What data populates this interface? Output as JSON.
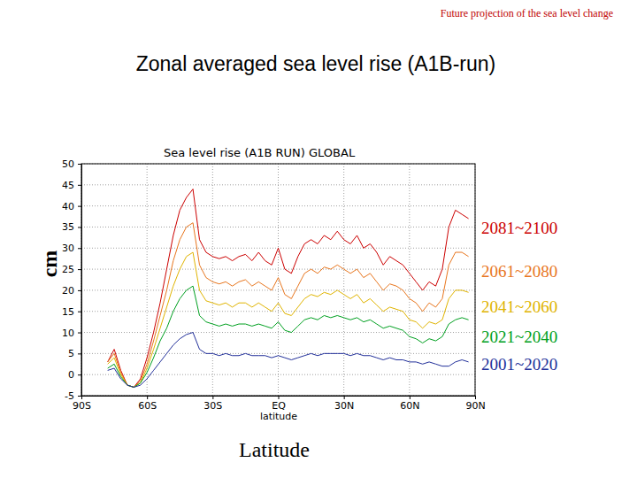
{
  "chart_data": {
    "type": "line",
    "header": "Future projection of the sea level change",
    "title": "Zonal averaged sea level rise (A1B-run)",
    "plot_title": "Sea level rise (A1B RUN) GLOBAL",
    "xlabel_inner": "latitude",
    "xlabel": "Latitude",
    "ylabel": "cm",
    "grid": true,
    "legend": "right",
    "xlim": [
      -90,
      90
    ],
    "xticks": [
      {
        "value": -90,
        "label": "90S"
      },
      {
        "value": -60,
        "label": "60S"
      },
      {
        "value": -30,
        "label": "30S"
      },
      {
        "value": 0,
        "label": "EQ"
      },
      {
        "value": 30,
        "label": "30N"
      },
      {
        "value": 60,
        "label": "60N"
      },
      {
        "value": 90,
        "label": "90N"
      }
    ],
    "ylim": [
      -5,
      50
    ],
    "yticks": [
      -5,
      0,
      5,
      10,
      15,
      20,
      25,
      30,
      35,
      40,
      45,
      50
    ],
    "x": [
      -78,
      -75,
      -72,
      -69,
      -66,
      -63,
      -60,
      -57,
      -54,
      -51,
      -48,
      -45,
      -42,
      -39,
      -36,
      -33,
      -30,
      -27,
      -24,
      -21,
      -18,
      -15,
      -12,
      -9,
      -6,
      -3,
      0,
      3,
      6,
      9,
      12,
      15,
      18,
      21,
      24,
      27,
      30,
      33,
      36,
      39,
      42,
      45,
      48,
      51,
      54,
      57,
      60,
      63,
      66,
      69,
      72,
      75,
      78,
      81,
      84,
      87
    ],
    "series": [
      {
        "name": "2081~2100",
        "color": "#cc0000",
        "values": [
          3,
          6,
          1,
          -2.5,
          -3,
          -1,
          4,
          10,
          17,
          25,
          33,
          39,
          42,
          44,
          32,
          29,
          28,
          27.5,
          28,
          27,
          28,
          28.5,
          27,
          29,
          27,
          26,
          30,
          25,
          24,
          28,
          31,
          32,
          31,
          33,
          32,
          34,
          32,
          31,
          33,
          30,
          31,
          29,
          26,
          28,
          27,
          26,
          24,
          22,
          20,
          22,
          21,
          25,
          35,
          39,
          38,
          37
        ]
      },
      {
        "name": "2061~2080",
        "color": "#e8761e",
        "values": [
          3,
          5,
          0.5,
          -2.5,
          -3,
          -1.5,
          2.5,
          8,
          14,
          20,
          27,
          32,
          35,
          36,
          26,
          23,
          22,
          21.5,
          22,
          21,
          22,
          22.5,
          21,
          22,
          21,
          20,
          23,
          19,
          18,
          21,
          24,
          25,
          24,
          25.5,
          25,
          26,
          25,
          24,
          25,
          23,
          24,
          22,
          20,
          21.5,
          21,
          20,
          18,
          17,
          15,
          17,
          16,
          18,
          26,
          29,
          29,
          28
        ]
      },
      {
        "name": "2041~2060",
        "color": "#e0b400",
        "values": [
          2.5,
          4,
          0,
          -2.5,
          -3,
          -2,
          1.5,
          6,
          11,
          16,
          21,
          25,
          28,
          29,
          20,
          17.5,
          17,
          16.5,
          17,
          16,
          17,
          17,
          16,
          17,
          16,
          15,
          17,
          14.5,
          14,
          16,
          18,
          19,
          18.5,
          19.5,
          19,
          20,
          19,
          18,
          19,
          17,
          18,
          16.5,
          15,
          16,
          15.5,
          15,
          13,
          12.5,
          11,
          12.5,
          12,
          13,
          18,
          20,
          20,
          19.5
        ]
      },
      {
        "name": "2021~2040",
        "color": "#00a020",
        "values": [
          1.5,
          2.5,
          -0.5,
          -2.5,
          -3,
          -2,
          0.5,
          4,
          8,
          11,
          15,
          18,
          20,
          21,
          14,
          12.5,
          12,
          11.5,
          12,
          11.5,
          12,
          12,
          11.5,
          12,
          11.5,
          11,
          12.5,
          10.5,
          10,
          11.5,
          13,
          13.5,
          13,
          14,
          13.5,
          14,
          13.5,
          13,
          13.5,
          12.5,
          13,
          12,
          11,
          11.5,
          11,
          10.5,
          9,
          8.5,
          7.5,
          8.5,
          8,
          9,
          12,
          13,
          13.5,
          13
        ]
      },
      {
        "name": "2001~2020",
        "color": "#22309a",
        "values": [
          1,
          1.5,
          -1,
          -2.5,
          -3,
          -2.5,
          -1,
          1,
          3,
          5,
          7,
          8.5,
          9.5,
          10,
          6,
          5,
          5,
          4.5,
          5,
          4.5,
          4.5,
          5,
          4.5,
          4.5,
          4.5,
          4,
          4.5,
          4,
          3.5,
          4,
          4.5,
          5,
          4.5,
          5,
          5,
          5,
          5,
          4.5,
          5,
          4.5,
          4.5,
          4,
          3.5,
          4,
          3.5,
          3.5,
          3,
          3,
          2.5,
          3,
          2.5,
          2,
          2,
          3,
          3.5,
          3
        ]
      }
    ]
  }
}
